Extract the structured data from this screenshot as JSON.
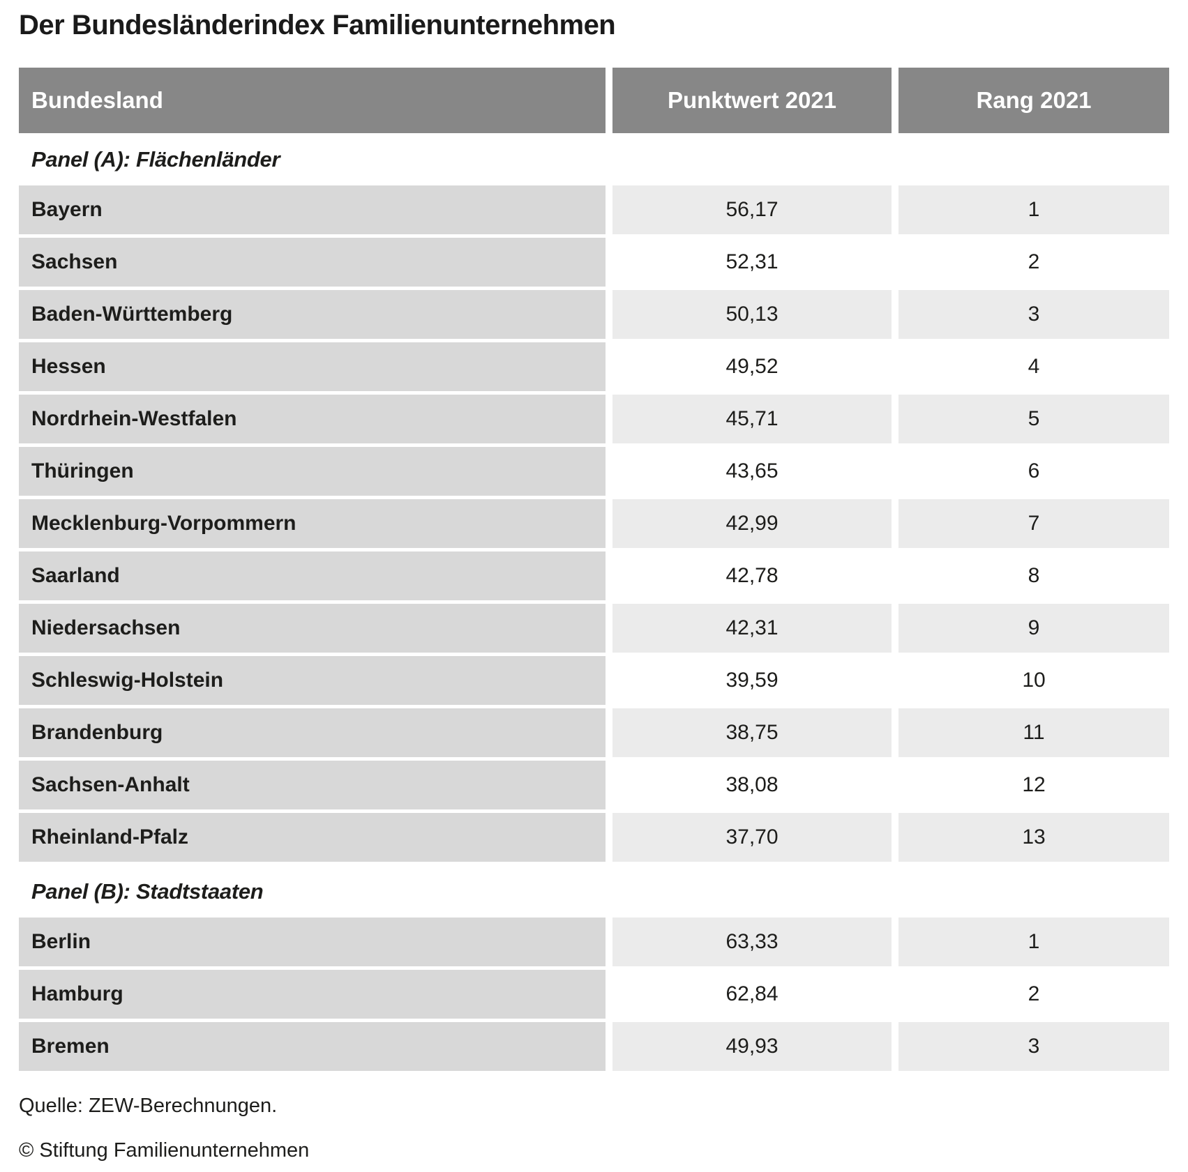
{
  "title": "Der Bundesländerindex Familienunternehmen",
  "table": {
    "columns": [
      "Bundesland",
      "Punktwert 2021",
      "Rang 2021"
    ],
    "panels": [
      {
        "label": "Panel (A): Flächenländer",
        "rows": [
          {
            "name": "Bayern",
            "punktwert": "56,17",
            "rang": "1"
          },
          {
            "name": "Sachsen",
            "punktwert": "52,31",
            "rang": "2"
          },
          {
            "name": "Baden-Württemberg",
            "punktwert": "50,13",
            "rang": "3"
          },
          {
            "name": "Hessen",
            "punktwert": "49,52",
            "rang": "4"
          },
          {
            "name": "Nordrhein-Westfalen",
            "punktwert": "45,71",
            "rang": "5"
          },
          {
            "name": "Thüringen",
            "punktwert": "43,65",
            "rang": "6"
          },
          {
            "name": "Mecklenburg-Vorpommern",
            "punktwert": "42,99",
            "rang": "7"
          },
          {
            "name": "Saarland",
            "punktwert": "42,78",
            "rang": "8"
          },
          {
            "name": "Niedersachsen",
            "punktwert": "42,31",
            "rang": "9"
          },
          {
            "name": "Schleswig-Holstein",
            "punktwert": "39,59",
            "rang": "10"
          },
          {
            "name": "Brandenburg",
            "punktwert": "38,75",
            "rang": "11"
          },
          {
            "name": "Sachsen-Anhalt",
            "punktwert": "38,08",
            "rang": "12"
          },
          {
            "name": "Rheinland-Pfalz",
            "punktwert": "37,70",
            "rang": "13"
          }
        ]
      },
      {
        "label": "Panel (B): Stadtstaaten",
        "rows": [
          {
            "name": "Berlin",
            "punktwert": "63,33",
            "rang": "1"
          },
          {
            "name": "Hamburg",
            "punktwert": "62,84",
            "rang": "2"
          },
          {
            "name": "Bremen",
            "punktwert": "49,93",
            "rang": "3"
          }
        ]
      }
    ]
  },
  "footer": {
    "source": "Quelle: ZEW-Berechnungen.",
    "copyright": "© Stiftung Familienunternehmen"
  },
  "colors": {
    "header_bg": "#878787",
    "header_text": "#ffffff",
    "name_cell_bg": "#d8d8d8",
    "stripe_cell_bg": "#ebebeb",
    "body_text": "#1d1d1b",
    "background": "#ffffff"
  }
}
